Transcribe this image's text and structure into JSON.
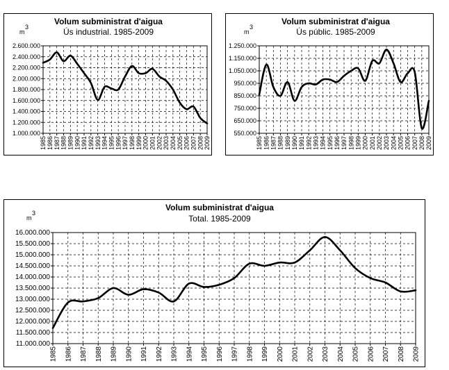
{
  "unit_label": "m",
  "unit_exp": "3",
  "chart_data": [
    {
      "type": "line",
      "title": "Volum subministrat d'aigua",
      "subtitle": "Ús industrial. 1985-2009",
      "x": [
        "1985",
        "1986",
        "1987",
        "1988",
        "1989",
        "1990",
        "1991",
        "1992",
        "1993",
        "1994",
        "1995",
        "1996",
        "1997",
        "1998",
        "1999",
        "2000",
        "2001",
        "2002",
        "2003",
        "2004",
        "2005",
        "2006",
        "2007",
        "2008",
        "2009"
      ],
      "values": [
        2290000,
        2350000,
        2480000,
        2320000,
        2420000,
        2270000,
        2100000,
        1920000,
        1610000,
        1850000,
        1820000,
        1800000,
        2040000,
        2230000,
        2100000,
        2100000,
        2180000,
        2040000,
        1960000,
        1800000,
        1560000,
        1440000,
        1490000,
        1280000,
        1180000
      ],
      "ylim": [
        1000000,
        2600000
      ],
      "yticks": [
        1000000,
        1200000,
        1400000,
        1600000,
        1800000,
        2000000,
        2200000,
        2400000,
        2600000
      ],
      "ytick_labels": [
        "1.000.000",
        "1.200.000",
        "1.400.000",
        "1.600.000",
        "1.800.000",
        "2.000.000",
        "2.200.000",
        "2.400.000",
        "2.600.000"
      ],
      "grid": true
    },
    {
      "type": "line",
      "title": "Volum subministrat d'aigua",
      "subtitle": "Ús públic. 1985-2009",
      "x": [
        "1985",
        "1986",
        "1987",
        "1988",
        "1989",
        "1990",
        "1991",
        "1992",
        "1993",
        "1994",
        "1995",
        "1996",
        "1997",
        "1998",
        "1999",
        "2000",
        "2001",
        "2002",
        "2003",
        "2004",
        "2005",
        "2006",
        "2007",
        "2008",
        "2009"
      ],
      "values": [
        860000,
        1100000,
        920000,
        850000,
        960000,
        810000,
        920000,
        950000,
        940000,
        980000,
        980000,
        960000,
        1010000,
        1050000,
        1070000,
        970000,
        1130000,
        1110000,
        1220000,
        1110000,
        960000,
        1030000,
        1040000,
        590000,
        810000
      ],
      "ylim": [
        550000,
        1250000
      ],
      "yticks": [
        550000,
        650000,
        750000,
        850000,
        950000,
        1050000,
        1150000,
        1250000
      ],
      "ytick_labels": [
        "550.000",
        "650.000",
        "750.000",
        "850.000",
        "950.000",
        "1.050.000",
        "1.150.000",
        "1.250.000"
      ],
      "grid": true
    },
    {
      "type": "line",
      "title": "Volum subministrat d'aigua",
      "subtitle": "Total. 1985-2009",
      "x": [
        "1985",
        "1986",
        "1987",
        "1988",
        "1989",
        "1990",
        "1991",
        "1992",
        "1993",
        "1994",
        "1995",
        "1996",
        "1997",
        "1998",
        "1999",
        "2000",
        "2001",
        "2002",
        "2003",
        "2004",
        "2005",
        "2006",
        "2007",
        "2008",
        "2009"
      ],
      "values": [
        11700000,
        12850000,
        12900000,
        13050000,
        13500000,
        13200000,
        13450000,
        13300000,
        12900000,
        13700000,
        13550000,
        13650000,
        13950000,
        14600000,
        14500000,
        14650000,
        14650000,
        15200000,
        15800000,
        15200000,
        14400000,
        13950000,
        13750000,
        13350000,
        13400000
      ],
      "ylim": [
        11000000,
        16000000
      ],
      "yticks": [
        11000000,
        11500000,
        12000000,
        12500000,
        13000000,
        13500000,
        14000000,
        14500000,
        15000000,
        15500000,
        16000000
      ],
      "ytick_labels": [
        "11.000.000",
        "11.500.000",
        "12.000.000",
        "12.500.000",
        "13.000.000",
        "13.500.000",
        "14.000.000",
        "14.500.000",
        "15.000.000",
        "15.500.000",
        "16.000.000"
      ],
      "grid": true
    }
  ]
}
